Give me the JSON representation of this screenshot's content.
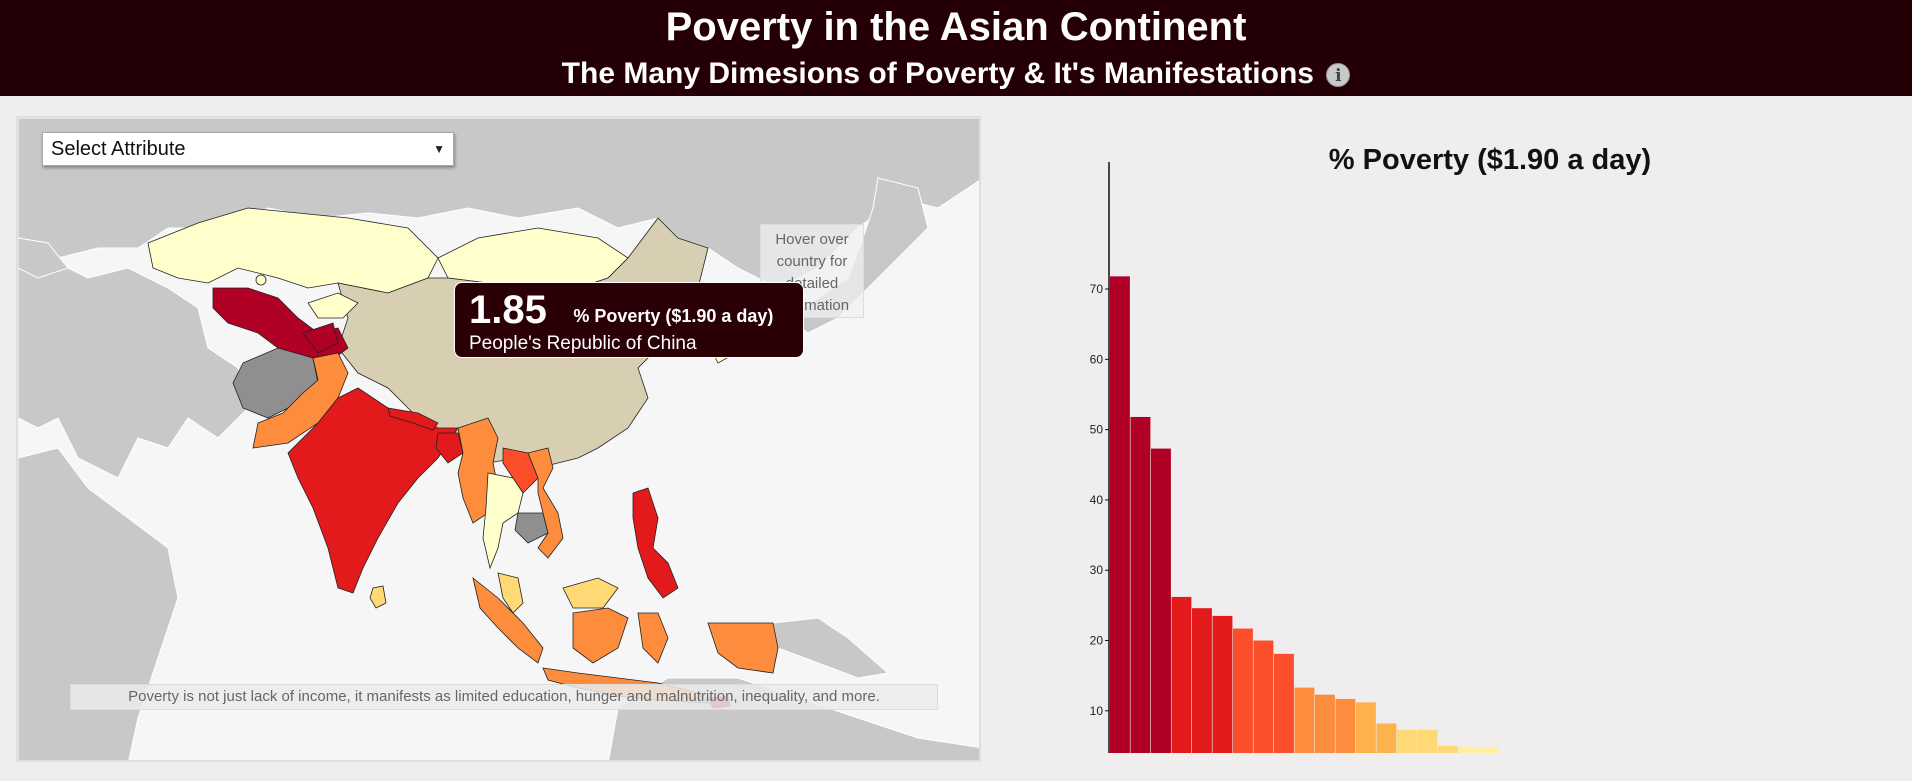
{
  "header": {
    "title": "Poverty in the Asian Continent",
    "subtitle": "The Many Dimesions of Poverty & It's Manifestations",
    "info_icon": "i"
  },
  "map": {
    "select": {
      "value": "Select Attribute",
      "arrow": "▼"
    },
    "hover_hint": [
      "Hover over",
      "country for",
      "detailed",
      "information"
    ],
    "tooltip": {
      "value": "1.85",
      "attribute": "% Poverty ($1.90 a day)",
      "country": "People's Republic of China"
    },
    "caption": "Poverty is not just lack of income, it manifests as limited education, hunger and malnutrition, inequality, and more.",
    "colors": {
      "ocean": "#f7f6f6",
      "other_land": "#c8c8c8",
      "no_data": "#8f8f8f",
      "highlight": "#d8cfb3"
    }
  },
  "chart_data": {
    "type": "bar",
    "title": "% Poverty ($1.90 a day)",
    "xlabel": "",
    "ylabel": "",
    "ylim": [
      4,
      74
    ],
    "yticks": [
      10,
      20,
      30,
      40,
      50,
      60,
      70
    ],
    "values": [
      71.8,
      51.8,
      47.3,
      26.2,
      24.6,
      23.5,
      21.7,
      20.0,
      18.1,
      13.3,
      12.3,
      11.7,
      11.2,
      8.2,
      7.3,
      7.3,
      5.0,
      4.9,
      4.8
    ],
    "colors": [
      "#b10026",
      "#b10026",
      "#b10026",
      "#e31a1c",
      "#e31a1c",
      "#e31a1c",
      "#fc4e2a",
      "#fc4e2a",
      "#fc4e2a",
      "#fd8d3c",
      "#fd8d3c",
      "#fd8d3c",
      "#feb24c",
      "#feb24c",
      "#fed976",
      "#fed976",
      "#fed976",
      "#ffeda0",
      "#ffeda0"
    ]
  }
}
